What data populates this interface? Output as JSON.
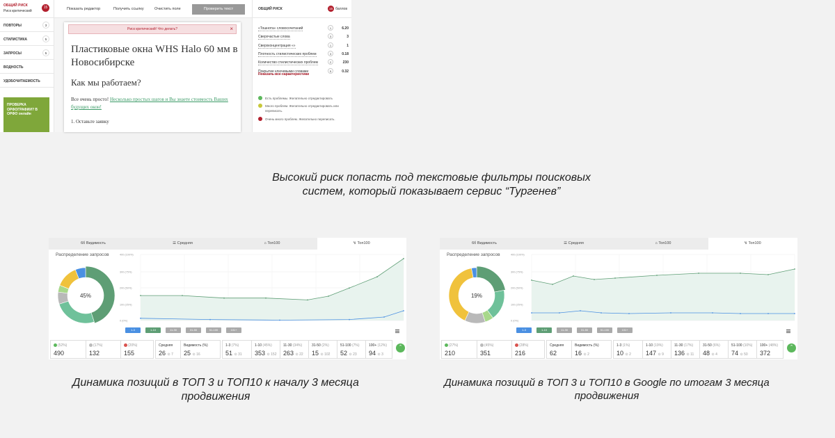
{
  "turgenev": {
    "left": {
      "risk_title": "ОБЩИЙ РИСК",
      "risk_subtitle": "Риск критический",
      "risk_score": "15",
      "menu": [
        {
          "label": "ПОВТОРЫ",
          "count": "3"
        },
        {
          "label": "СТИЛИСТИКА",
          "count": "5"
        },
        {
          "label": "ЗАПРОСЫ",
          "count": "5"
        },
        {
          "label": "ВОДНОСТЬ",
          "count": ""
        },
        {
          "label": "УДОБОЧИТАЕМОСТЬ",
          "count": ""
        }
      ],
      "ad_text": "ПРОВЕРКА ОРФОГРАФИИ? В ОРФО онлайн"
    },
    "toolbar": {
      "show_editor": "Показать редактор",
      "get_link": "Получить ссылку",
      "clear_field": "Очистить поле",
      "check_text": "Проверить текст"
    },
    "doc": {
      "alert": "Риск критический! Что делать?",
      "title": "Пластиковые окна WHS Halo 60 мм в Новосибирске",
      "subtitle": "Как мы работаем?",
      "para_plain": "Все очень просто! ",
      "para_link": "Несколько простых шагов и Вы знаете стоимость Ваших будущих окон!",
      "step1": "1. Оставьте заявку"
    },
    "right": {
      "title": "ОБЩИЙ РИСК",
      "score": "15",
      "score_unit": "баллов",
      "rows": [
        {
          "name": "«Тошнота» словосочетаний",
          "count": "1",
          "value": "6.20"
        },
        {
          "name": "Сверхчастые слова",
          "count": "3",
          "value": "3"
        },
        {
          "name": "Сверхконцентрация «»",
          "count": "1",
          "value": "1"
        },
        {
          "name": "Плотность стилистических проблем",
          "count": "3",
          "value": "0.18"
        },
        {
          "name": "Количество стилистических проблем",
          "count": "2",
          "value": "230"
        },
        {
          "name": "Покрытие ключевыми словами",
          "count": "5",
          "value": "0.32"
        }
      ],
      "show_all": "Показать все характеристики",
      "legend": [
        {
          "text": "Есть проблемы. Желательно отредактировать",
          "color": "#5cb85c"
        },
        {
          "text": "Много проблем. Желательно отредактировать или переписать.",
          "color": "#c8c83a"
        },
        {
          "text": "Очень много проблем. Желательно переписать.",
          "color": "#b21f2d"
        }
      ]
    },
    "caption": "Высокий риск попасть под текстовые фильтры поисковых систем, который показывает сервис “Тургенев”"
  },
  "panels": [
    {
      "tabs": [
        "Видимость",
        "Средняя",
        "Топ100",
        "Топ100"
      ],
      "donut_label": "Распределение запросов",
      "donut_center": "45%",
      "donut_segments": [
        {
          "pct": 45,
          "color": "#5e9e75"
        },
        {
          "pct": 25,
          "color": "#6fc19a"
        },
        {
          "pct": 7,
          "color": "#b9b9b9"
        },
        {
          "pct": 4,
          "color": "#a8d88a"
        },
        {
          "pct": 13,
          "color": "#f0c23c"
        },
        {
          "pct": 6,
          "color": "#4a90e2"
        }
      ],
      "y_ticks": [
        "400 (100%)",
        "300 (75%)",
        "200 (50%)",
        "100 (25%)",
        "0 (0%)"
      ],
      "buttons": [
        {
          "label": "1-3",
          "color": "#4a90e2"
        },
        {
          "label": "1-10",
          "color": "#5e9e75"
        },
        {
          "label": "11-30",
          "color": "#aaa"
        },
        {
          "label": "31-50",
          "color": "#aaa"
        },
        {
          "label": "51-100",
          "color": "#aaa"
        },
        {
          "label": "101+",
          "color": "#aaa"
        }
      ],
      "stats": [
        {
          "label": "(52%)",
          "value": "490",
          "delta": "",
          "icon": "#5cb85c"
        },
        {
          "label": "(17%)",
          "value": "132",
          "delta": "",
          "icon": "#bbb"
        },
        {
          "label": "(20%)",
          "value": "155",
          "delta": "",
          "icon": "#d9534f"
        },
        {
          "label": "Средняя",
          "value": "26",
          "delta": "7"
        },
        {
          "label": "Видимость (%)",
          "value": "25",
          "delta": "16"
        },
        {
          "label": "1-3",
          "sub": "(7%)",
          "value": "51",
          "delta": "31"
        },
        {
          "label": "1-10",
          "sub": "(45%)",
          "value": "353",
          "delta": "152"
        },
        {
          "label": "11-30",
          "sub": "(34%)",
          "value": "263",
          "delta": "22"
        },
        {
          "label": "31-50",
          "sub": "(2%)",
          "value": "15",
          "delta": "102"
        },
        {
          "label": "51-100",
          "sub": "(7%)",
          "value": "52",
          "delta": "23"
        },
        {
          "label": "100+",
          "sub": "(12%)",
          "value": "94",
          "delta": "3"
        }
      ],
      "caption": "Динамика позиций в ТОП 3 и ТОП10 к началу 3 месяца продвижения"
    },
    {
      "tabs": [
        "Видимость",
        "Средняя",
        "Топ100",
        "Топ100"
      ],
      "donut_label": "Распределение запросов",
      "donut_center": "19%",
      "donut_segments": [
        {
          "pct": 22,
          "color": "#5e9e75"
        },
        {
          "pct": 18,
          "color": "#6fc19a"
        },
        {
          "pct": 5,
          "color": "#a8d88a"
        },
        {
          "pct": 12,
          "color": "#b9b9b9"
        },
        {
          "pct": 40,
          "color": "#f0c23c"
        },
        {
          "pct": 3,
          "color": "#4a90e2"
        }
      ],
      "y_ticks": [
        "400 (100%)",
        "300 (75%)",
        "200 (50%)",
        "100 (25%)",
        "0 (0%)"
      ],
      "buttons": [
        {
          "label": "1-3",
          "color": "#4a90e2"
        },
        {
          "label": "1-10",
          "color": "#5e9e75"
        },
        {
          "label": "11-30",
          "color": "#aaa"
        },
        {
          "label": "31-50",
          "color": "#aaa"
        },
        {
          "label": "51-100",
          "color": "#aaa"
        },
        {
          "label": "101+",
          "color": "#aaa"
        }
      ],
      "stats": [
        {
          "label": "(27%)",
          "value": "210",
          "delta": "",
          "icon": "#5cb85c"
        },
        {
          "label": "(45%)",
          "value": "351",
          "delta": "",
          "icon": "#bbb"
        },
        {
          "label": "(28%)",
          "value": "216",
          "delta": "",
          "icon": "#d9534f"
        },
        {
          "label": "Средняя",
          "value": "62",
          "delta": ""
        },
        {
          "label": "Видимость (%)",
          "value": "16",
          "delta": "2"
        },
        {
          "label": "1-3",
          "sub": "(1%)",
          "value": "10",
          "delta": "2"
        },
        {
          "label": "1-10",
          "sub": "(19%)",
          "value": "147",
          "delta": "9"
        },
        {
          "label": "11-30",
          "sub": "(17%)",
          "value": "136",
          "delta": "11"
        },
        {
          "label": "31-50",
          "sub": "(6%)",
          "value": "48",
          "delta": "4"
        },
        {
          "label": "51-100",
          "sub": "(10%)",
          "value": "74",
          "delta": "50"
        },
        {
          "label": "100+",
          "sub": "(48%)",
          "value": "372",
          "delta": ""
        }
      ],
      "caption": "Динамика позиций в ТОП 3 и ТОП10 в Google по итогам 3 месяца продвижения"
    }
  ]
}
